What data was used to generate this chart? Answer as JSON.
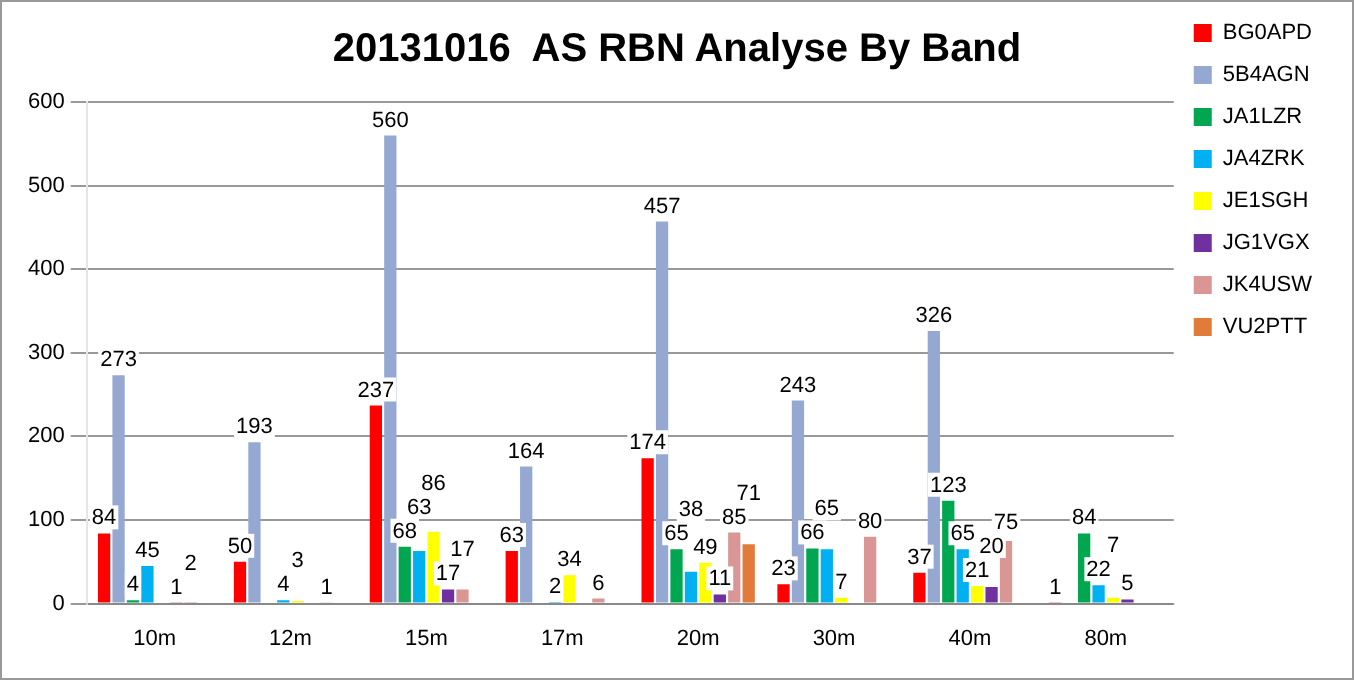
{
  "chart_data": {
    "type": "bar",
    "title": "20131016  AS RBN Analyse By Band",
    "categories": [
      "10m",
      "12m",
      "15m",
      "17m",
      "20m",
      "30m",
      "40m",
      "80m"
    ],
    "series": [
      {
        "name": "BG0APD",
        "color": "#ff0000",
        "values": [
          84,
          50,
          237,
          63,
          174,
          23,
          37,
          1
        ]
      },
      {
        "name": "5B4AGN",
        "color": "#95a8d2",
        "values": [
          273,
          193,
          560,
          164,
          457,
          243,
          326,
          null
        ]
      },
      {
        "name": "JA1LZR",
        "color": "#00a650",
        "values": [
          4,
          null,
          68,
          null,
          65,
          66,
          123,
          84
        ]
      },
      {
        "name": "JA4ZRK",
        "color": "#00b0f0",
        "values": [
          45,
          4,
          63,
          2,
          38,
          65,
          65,
          22
        ]
      },
      {
        "name": "JE1SGH",
        "color": "#ffff00",
        "values": [
          null,
          3,
          86,
          34,
          49,
          7,
          21,
          7
        ]
      },
      {
        "name": "JG1VGX",
        "color": "#7030a0",
        "values": [
          1,
          null,
          17,
          null,
          11,
          null,
          20,
          5
        ]
      },
      {
        "name": "JK4USW",
        "color": "#d99694",
        "values": [
          2,
          1,
          17,
          6,
          85,
          80,
          75,
          null
        ]
      },
      {
        "name": "VU2PTT",
        "color": "#e07b39",
        "values": [
          null,
          null,
          null,
          null,
          71,
          null,
          null,
          null
        ]
      }
    ],
    "ylim": [
      0,
      600
    ],
    "yticks": [
      0,
      100,
      200,
      300,
      400,
      500,
      600
    ],
    "grid": "y",
    "legend": "right",
    "data_labels": true
  }
}
